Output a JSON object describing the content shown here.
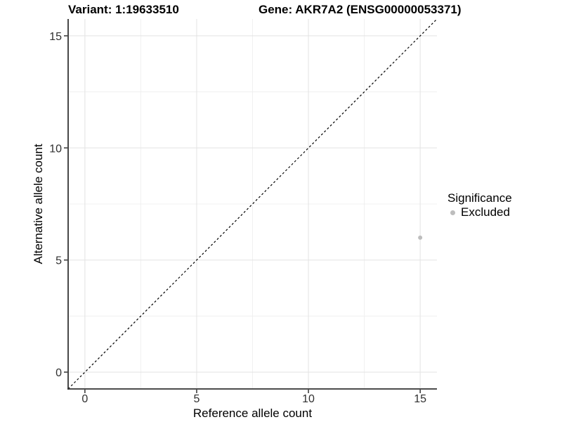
{
  "titles": {
    "variant": "Variant: 1:19633510",
    "gene": "Gene: AKR7A2 (ENSG00000053371)"
  },
  "chart_data": {
    "type": "scatter",
    "title": "Variant: 1:19633510   Gene: AKR7A2 (ENSG00000053371)",
    "xlabel": "Reference allele count",
    "ylabel": "Alternative allele count",
    "xlim": [
      -0.75,
      15.75
    ],
    "ylim": [
      -0.75,
      15.75
    ],
    "x_ticks": [
      0,
      5,
      10,
      15
    ],
    "y_ticks": [
      0,
      5,
      10,
      15
    ],
    "x_minor_ticks": [
      2.5,
      7.5,
      12.5
    ],
    "y_minor_ticks": [
      2.5,
      7.5,
      12.5
    ],
    "grid": true,
    "reference_line": {
      "type": "identity",
      "slope": 1,
      "intercept": 0,
      "style": "dashed",
      "color": "#000000"
    },
    "series": [
      {
        "name": "Excluded",
        "color": "#bdbdbd",
        "points": [
          {
            "x": 15,
            "y": 6
          }
        ]
      }
    ],
    "legend": {
      "title": "Significance",
      "position": "right",
      "items": [
        {
          "label": "Excluded",
          "color": "#bdbdbd"
        }
      ]
    }
  },
  "colors": {
    "background": "#ffffff",
    "grid_major": "#e3e3e3",
    "grid_minor": "#f0f0f0",
    "axis_line": "#333333",
    "tick_text": "#303030",
    "dashed_line": "#000000",
    "point": "#bdbdbd"
  }
}
